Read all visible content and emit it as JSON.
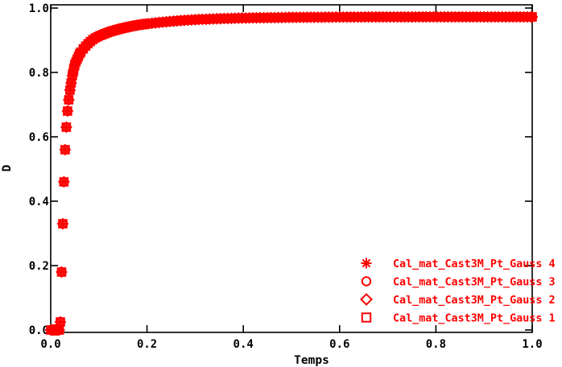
{
  "window": {
    "background": "#ffffff"
  },
  "chart_data": {
    "type": "scatter",
    "title": "",
    "xlabel": "Temps",
    "ylabel": "D",
    "xlim": [
      0.0,
      1.0
    ],
    "ylim": [
      0.0,
      1.0
    ],
    "x_tick_labels": [
      "0.0",
      "0.2",
      "0.4",
      "0.6",
      "0.8",
      "1.0"
    ],
    "y_tick_labels": [
      "0.0",
      "0.2",
      "0.4",
      "0.6",
      "0.8",
      "1.0"
    ],
    "grid": false,
    "frame": "full-box-with-mirrored-inward-ticks",
    "colors": {
      "series": "#ff0000",
      "axes": "#000000",
      "background": "#ffffff"
    },
    "legend": {
      "position": "inside-bottom-right",
      "text_color": "#ff0000"
    },
    "series": [
      {
        "name": "Cal_mat_Cast3M_Pt_Gauss 4",
        "marker": "asterisk"
      },
      {
        "name": "Cal_mat_Cast3M_Pt_Gauss 3",
        "marker": "circle"
      },
      {
        "name": "Cal_mat_Cast3M_Pt_Gauss 2",
        "marker": "diamond"
      },
      {
        "name": "Cal_mat_Cast3M_Pt_Gauss 1",
        "marker": "square"
      }
    ],
    "series_note": "All four Gauss-point series coincide exactly on one saturation curve D(t); D stays 0 until t~0.018, rises steeply to ~0.7 by t~0.035, then saturates at ~0.97.",
    "curve_anchors": {
      "t": [
        0,
        0.005,
        0.01,
        0.015,
        0.0175,
        0.02,
        0.0225,
        0.025,
        0.0275,
        0.03,
        0.0325,
        0.035,
        0.0375,
        0.04,
        0.045,
        0.05,
        0.06,
        0.07,
        0.08,
        0.09,
        0.1,
        0.12,
        0.14,
        0.16,
        0.18,
        0.2,
        0.23,
        0.26,
        0.3,
        0.35,
        0.4,
        0.5,
        0.6,
        0.8,
        1.0
      ],
      "D": [
        0,
        0,
        0,
        0,
        0,
        0.025,
        0.18,
        0.33,
        0.46,
        0.56,
        0.63,
        0.68,
        0.715,
        0.745,
        0.79,
        0.825,
        0.858,
        0.878,
        0.893,
        0.905,
        0.913,
        0.925,
        0.934,
        0.941,
        0.947,
        0.951,
        0.956,
        0.96,
        0.964,
        0.967,
        0.969,
        0.971,
        0.972,
        0.9725,
        0.9725
      ]
    },
    "sampling": [
      {
        "t_end": 0.06,
        "dt": 0.0025
      },
      {
        "t_end": 0.2,
        "dt": 0.005
      },
      {
        "t_end": 1.0,
        "dt": 0.0075
      }
    ]
  }
}
